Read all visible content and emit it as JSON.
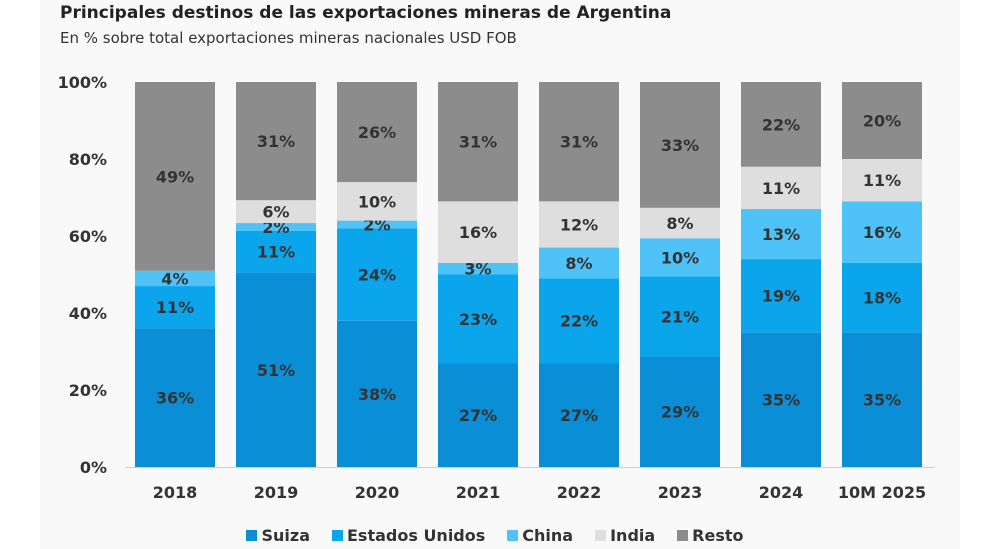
{
  "chart_data": {
    "type": "bar",
    "stacked": true,
    "title": "Principales destinos de las exportaciones mineras de Argentina",
    "subtitle": "En % sobre total exportaciones mineras nacionales USD FOB",
    "categories": [
      "2018",
      "2019",
      "2020",
      "2021",
      "2022",
      "2023",
      "2024",
      "10M 2025"
    ],
    "series": [
      {
        "name": "Suiza",
        "color": "#0a8fd6",
        "values": [
          36,
          51,
          38,
          27,
          27,
          29,
          35,
          35
        ]
      },
      {
        "name": "Estados Unidos",
        "color": "#0ba5ec",
        "values": [
          11,
          11,
          24,
          23,
          22,
          21,
          19,
          18
        ]
      },
      {
        "name": "China",
        "color": "#4fc3f7",
        "values": [
          4,
          2,
          2,
          3,
          8,
          10,
          13,
          16
        ]
      },
      {
        "name": "India",
        "color": "#dedede",
        "values": [
          0,
          6,
          10,
          16,
          12,
          8,
          11,
          11
        ]
      },
      {
        "name": "Resto",
        "color": "#8c8c8c",
        "values": [
          49,
          31,
          26,
          31,
          31,
          33,
          22,
          20
        ]
      }
    ],
    "yticks": [
      "0%",
      "20%",
      "40%",
      "60%",
      "80%",
      "100%"
    ],
    "ylim": [
      0,
      100
    ],
    "legend": "bottom"
  }
}
